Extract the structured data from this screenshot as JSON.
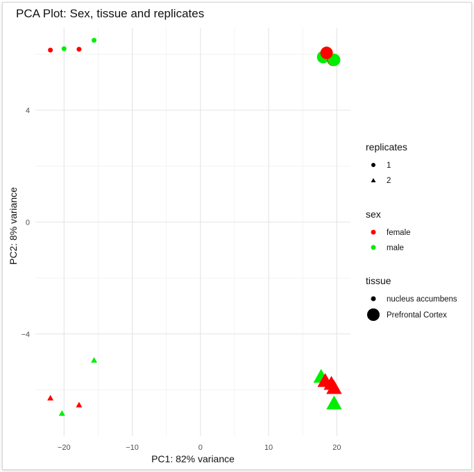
{
  "chart_data": {
    "type": "scatter",
    "title": "PCA Plot: Sex, tissue and replicates",
    "xlabel": "PC1: 82% variance",
    "ylabel": "PC2: 8% variance",
    "xlim": [
      -24.2,
      22
    ],
    "ylim": [
      -7.65,
      6.95
    ],
    "xticks": [
      -20,
      -10,
      0,
      10,
      20
    ],
    "yticks": [
      -4,
      0,
      4
    ],
    "xtick_labels": [
      "−20",
      "−10",
      "0",
      "10",
      "20"
    ],
    "ytick_labels": [
      "−4",
      "0",
      "4"
    ],
    "grid": true,
    "legend_position": "right",
    "colors": {
      "female": "#FF0000",
      "male": "#00EE00"
    },
    "points": [
      {
        "x": -22.0,
        "y": 6.15,
        "sex": "female",
        "tissue": "nucleus accumbens",
        "replicate": "1"
      },
      {
        "x": -20.0,
        "y": 6.2,
        "sex": "male",
        "tissue": "nucleus accumbens",
        "replicate": "1"
      },
      {
        "x": -17.8,
        "y": 6.18,
        "sex": "female",
        "tissue": "nucleus accumbens",
        "replicate": "1"
      },
      {
        "x": -15.6,
        "y": 6.5,
        "sex": "male",
        "tissue": "nucleus accumbens",
        "replicate": "1"
      },
      {
        "x": 18.0,
        "y": 5.9,
        "sex": "male",
        "tissue": "Prefrontal Cortex",
        "replicate": "1"
      },
      {
        "x": 19.5,
        "y": 5.8,
        "sex": "female",
        "tissue": "Prefrontal Cortex",
        "replicate": "1"
      },
      {
        "x": 19.6,
        "y": 5.8,
        "sex": "male",
        "tissue": "Prefrontal Cortex",
        "replicate": "1"
      },
      {
        "x": 18.5,
        "y": 6.05,
        "sex": "female",
        "tissue": "Prefrontal Cortex",
        "replicate": "1"
      },
      {
        "x": -15.6,
        "y": -4.95,
        "sex": "male",
        "tissue": "nucleus accumbens",
        "replicate": "2"
      },
      {
        "x": -22.0,
        "y": -6.3,
        "sex": "female",
        "tissue": "nucleus accumbens",
        "replicate": "2"
      },
      {
        "x": -17.8,
        "y": -6.55,
        "sex": "female",
        "tissue": "nucleus accumbens",
        "replicate": "2"
      },
      {
        "x": -20.3,
        "y": -6.85,
        "sex": "male",
        "tissue": "nucleus accumbens",
        "replicate": "2"
      },
      {
        "x": 17.7,
        "y": -5.55,
        "sex": "male",
        "tissue": "Prefrontal Cortex",
        "replicate": "2"
      },
      {
        "x": 18.3,
        "y": -5.7,
        "sex": "female",
        "tissue": "Prefrontal Cortex",
        "replicate": "2"
      },
      {
        "x": 19.2,
        "y": -5.8,
        "sex": "female",
        "tissue": "Prefrontal Cortex",
        "replicate": "2"
      },
      {
        "x": 19.6,
        "y": -5.95,
        "sex": "female",
        "tissue": "Prefrontal Cortex",
        "replicate": "2"
      },
      {
        "x": 19.6,
        "y": -6.5,
        "sex": "male",
        "tissue": "Prefrontal Cortex",
        "replicate": "2"
      }
    ],
    "legend": {
      "replicates": {
        "title": "replicates",
        "items": [
          "1",
          "2"
        ]
      },
      "sex": {
        "title": "sex",
        "items": [
          "female",
          "male"
        ]
      },
      "tissue": {
        "title": "tissue",
        "items": [
          "nucleus accumbens",
          "Prefrontal Cortex"
        ]
      }
    }
  }
}
